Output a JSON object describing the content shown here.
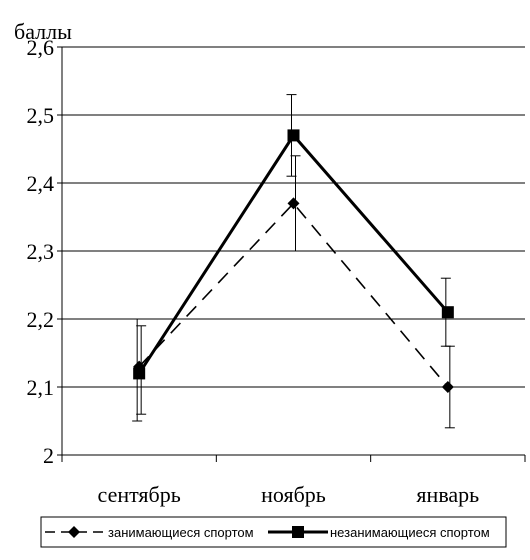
{
  "chart_data": {
    "type": "line",
    "title": "",
    "xlabel": "",
    "ylabel": "баллы",
    "categories": [
      "сентябрь",
      "ноябрь",
      "январь"
    ],
    "ylim": [
      2,
      2.6
    ],
    "yticks": [
      "2",
      "2,1",
      "2,2",
      "2,3",
      "2,4",
      "2,5",
      "2,6"
    ],
    "ytick_values": [
      2,
      2.1,
      2.2,
      2.3,
      2.4,
      2.5,
      2.6
    ],
    "grid": "horizontal",
    "legend_position": "bottom",
    "series": [
      {
        "name": "занимающиеся спортом",
        "values": [
          2.13,
          2.37,
          2.1
        ],
        "err_low": [
          2.06,
          2.3,
          2.04
        ],
        "err_high": [
          2.19,
          2.44,
          2.16
        ],
        "line_style": "dashed",
        "marker": "diamond",
        "color": "#000000"
      },
      {
        "name": "незанимающиеся спортом",
        "values": [
          2.12,
          2.47,
          2.21
        ],
        "err_low": [
          2.05,
          2.41,
          2.16
        ],
        "err_high": [
          2.2,
          2.53,
          2.26
        ],
        "line_style": "solid",
        "marker": "square",
        "color": "#000000"
      }
    ]
  }
}
